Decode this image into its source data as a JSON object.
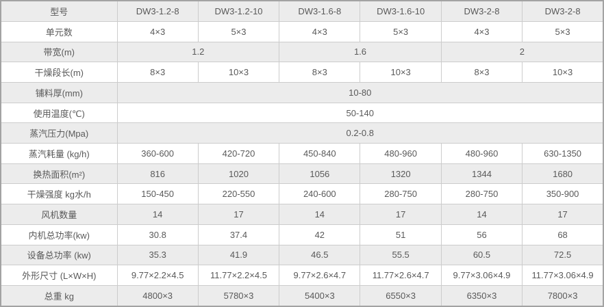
{
  "colors": {
    "stripe_row_bg": "#ececec",
    "white_row_bg": "#ffffff",
    "grid_line": "#cccccc",
    "outer_border": "#a3a3a3",
    "text": "#595959"
  },
  "chart_data": {
    "type": "table",
    "header": {
      "label": "型号",
      "models": [
        "DW3-1.2-8",
        "DW3-1.2-10",
        "DW3-1.6-8",
        "DW3-1.6-10",
        "DW3-2-8",
        "DW3-2-8"
      ]
    },
    "rows": [
      {
        "label": "单元数",
        "cells": [
          "4×3",
          "5×3",
          "4×3",
          "5×3",
          "4×3",
          "5×3"
        ]
      },
      {
        "label": "带宽(m)",
        "cells": [
          "1.2",
          "1.6",
          "2"
        ]
      },
      {
        "label": "干燥段长(m)",
        "cells": [
          "8×3",
          "10×3",
          "8×3",
          "10×3",
          "8×3",
          "10×3"
        ]
      },
      {
        "label": "铺料厚(mm)",
        "cells": [
          "10-80"
        ]
      },
      {
        "label": "使用温度(℃)",
        "cells": [
          "50-140"
        ]
      },
      {
        "label": "蒸汽压力(Mpa)",
        "cells": [
          "0.2-0.8"
        ]
      },
      {
        "label": "蒸汽耗量 (kg/h)",
        "cells": [
          "360-600",
          "420-720",
          "450-840",
          "480-960",
          "480-960",
          "630-1350"
        ]
      },
      {
        "label": "换热面积(m²)",
        "cells": [
          "816",
          "1020",
          "1056",
          "1320",
          "1344",
          "1680"
        ]
      },
      {
        "label": "干燥强度 kg水/h",
        "cells": [
          "150-450",
          "220-550",
          "240-600",
          "280-750",
          "280-750",
          "350-900"
        ]
      },
      {
        "label": "风机数量",
        "cells": [
          "14",
          "17",
          "14",
          "17",
          "14",
          "17"
        ]
      },
      {
        "label": "内机总功率(kw)",
        "cells": [
          "30.8",
          "37.4",
          "42",
          "51",
          "56",
          "68"
        ]
      },
      {
        "label": "设备总功率 (kw)",
        "cells": [
          "35.3",
          "41.9",
          "46.5",
          "55.5",
          "60.5",
          "72.5"
        ]
      },
      {
        "label": "外形尺寸 (L×W×H)",
        "cells": [
          "9.77×2.2×4.5",
          "11.77×2.2×4.5",
          "9.77×2.6×4.7",
          "11.77×2.6×4.7",
          "9.77×3.06×4.9",
          "11.77×3.06×4.9"
        ]
      },
      {
        "label": "总重 kg",
        "cells": [
          "4800×3",
          "5780×3",
          "5400×3",
          "6550×3",
          "6350×3",
          "7800×3"
        ]
      }
    ]
  }
}
